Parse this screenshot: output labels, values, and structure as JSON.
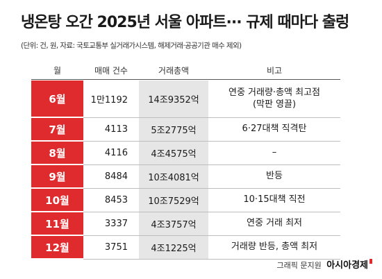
{
  "title": "냉온탕 오간 2025년 서울 아파트··· 규제 때마다 출렁",
  "subtitle": "(단위: 건, 원, 자료: 국토교통부 실거래가시스템, 해제거래·공공기관 매수 제외)",
  "headers": {
    "month": "월",
    "count": "매매 건수",
    "total": "거래총액",
    "note": "비고"
  },
  "rows": [
    {
      "month": "6월",
      "count": "1만1192",
      "total": "14조9352억",
      "note": "연중 거래량·총액 최고점",
      "note2": "(막판 영끌)"
    },
    {
      "month": "7월",
      "count": "4113",
      "total": "5조2775억",
      "note": "6·27대책 직격탄"
    },
    {
      "month": "8월",
      "count": "4116",
      "total": "4조4575억",
      "note": "–"
    },
    {
      "month": "9월",
      "count": "8484",
      "total": "10조4081억",
      "note": "반등"
    },
    {
      "month": "10월",
      "count": "8453",
      "total": "10조7529억",
      "note": "10·15대책 직전"
    },
    {
      "month": "11월",
      "count": "3337",
      "total": "4조3757억",
      "note": "연중 거래 최저"
    },
    {
      "month": "12월",
      "count": "3751",
      "total": "4조1225억",
      "note": "거래량 반등, 총액 최저"
    }
  ],
  "footer": {
    "credit": "그래픽 문지원",
    "brand": "아시아경제"
  },
  "colors": {
    "accent": "#e02b2e",
    "total_column_bg": "#e6e6e6"
  }
}
